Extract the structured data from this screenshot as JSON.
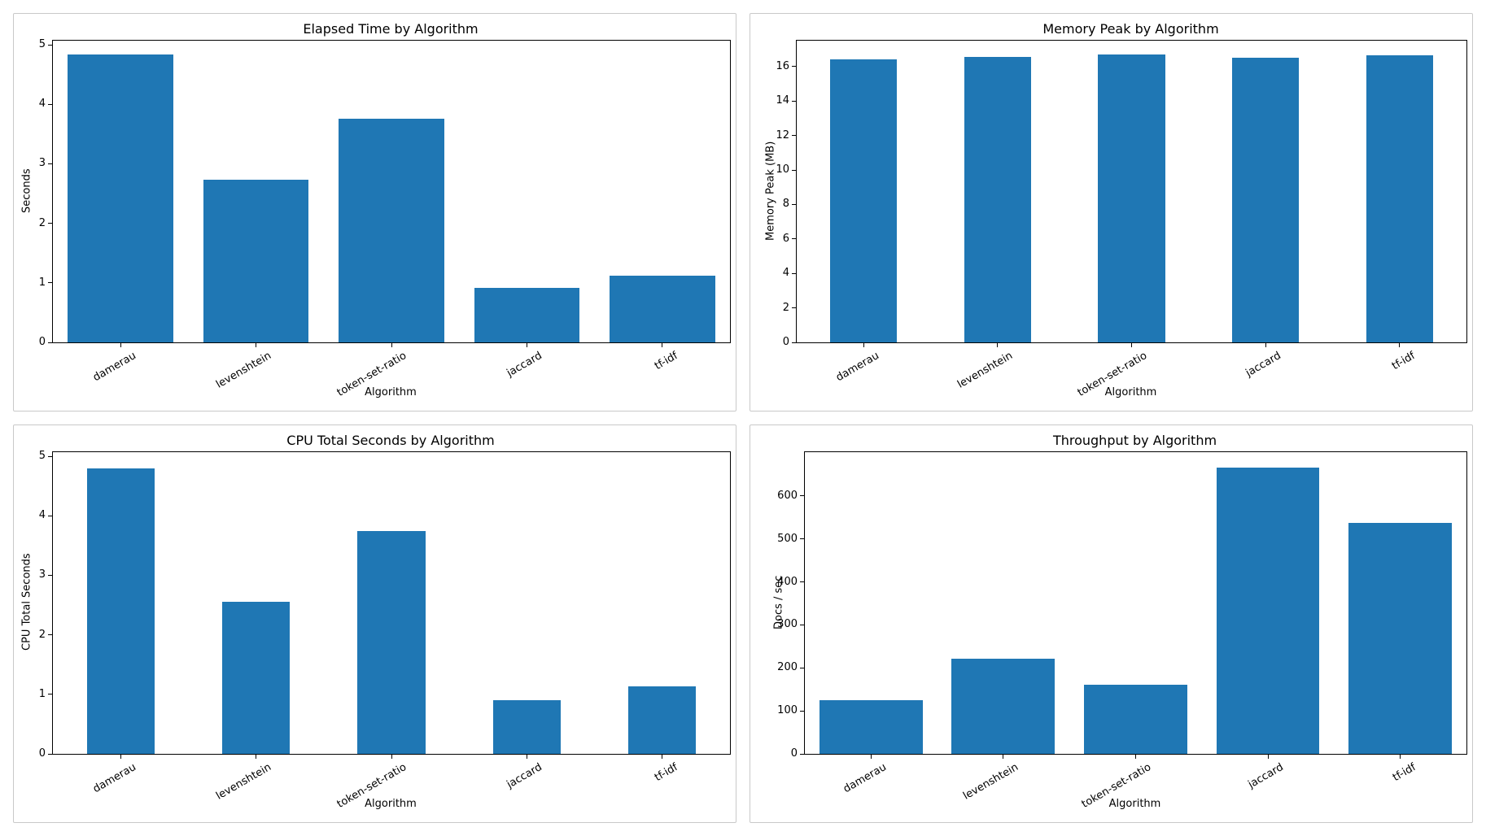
{
  "figure": {
    "background": "#ffffff",
    "panel_border_color": "#c9c9c9",
    "axis_color": "#000000",
    "bar_color": "#1f77b4"
  },
  "chart_data": [
    {
      "type": "bar",
      "title": "Elapsed Time by Algorithm",
      "xlabel": "Algorithm",
      "ylabel": "Seconds",
      "categories": [
        "damerau",
        "levenshtein",
        "token-set-ratio",
        "jaccard",
        "tf-idf"
      ],
      "values": [
        4.84,
        2.73,
        3.76,
        0.91,
        1.12
      ],
      "yticks": [
        0,
        1,
        2,
        3,
        4,
        5
      ],
      "ylim": [
        0,
        5.07
      ],
      "bar_width_frac": 0.78,
      "bar_color": "#1f77b4",
      "grid": false,
      "legend": "none",
      "xtick_rotation_deg": 30
    },
    {
      "type": "bar",
      "title": "Memory Peak by Algorithm",
      "xlabel": "Algorithm",
      "ylabel": "Memory Peak (MB)",
      "categories": [
        "damerau",
        "levenshtein",
        "token-set-ratio",
        "jaccard",
        "tf-idf"
      ],
      "values": [
        16.4,
        16.55,
        16.7,
        16.5,
        16.65
      ],
      "yticks": [
        0,
        2,
        4,
        6,
        8,
        10,
        12,
        14,
        16
      ],
      "ylim": [
        0,
        17.5
      ],
      "bar_width_frac": 0.5,
      "bar_color": "#1f77b4",
      "grid": false,
      "legend": "none",
      "xtick_rotation_deg": 30
    },
    {
      "type": "bar",
      "title": "CPU Total Seconds by Algorithm",
      "xlabel": "Algorithm",
      "ylabel": "CPU Total Seconds",
      "categories": [
        "damerau",
        "levenshtein",
        "token-set-ratio",
        "jaccard",
        "tf-idf"
      ],
      "values": [
        4.8,
        2.56,
        3.74,
        0.9,
        1.13
      ],
      "yticks": [
        0,
        1,
        2,
        3,
        4,
        5
      ],
      "ylim": [
        0,
        5.07
      ],
      "bar_width_frac": 0.5,
      "bar_color": "#1f77b4",
      "grid": false,
      "legend": "none",
      "xtick_rotation_deg": 30
    },
    {
      "type": "bar",
      "title": "Throughput by Algorithm",
      "xlabel": "Algorithm",
      "ylabel": "Docs / sec",
      "categories": [
        "damerau",
        "levenshtein",
        "token-set-ratio",
        "jaccard",
        "tf-idf"
      ],
      "values": [
        125,
        222,
        161,
        667,
        537
      ],
      "yticks": [
        0,
        100,
        200,
        300,
        400,
        500,
        600
      ],
      "ylim": [
        0,
        702
      ],
      "bar_width_frac": 0.78,
      "bar_color": "#1f77b4",
      "grid": false,
      "legend": "none",
      "xtick_rotation_deg": 30
    }
  ]
}
